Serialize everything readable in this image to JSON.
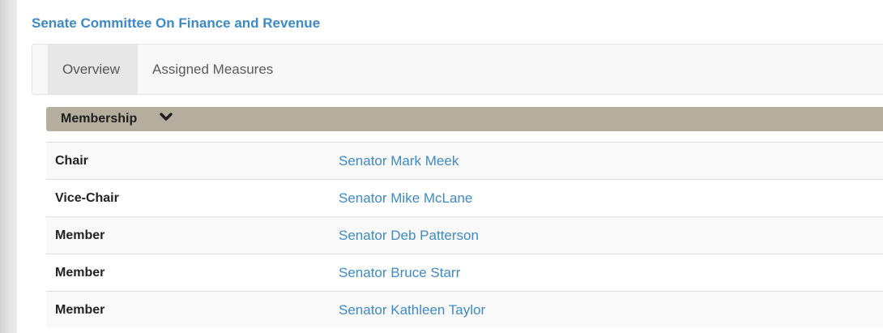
{
  "committee": {
    "title": "Senate Committee On Finance and Revenue"
  },
  "tabs": [
    {
      "label": "Overview",
      "active": true
    },
    {
      "label": "Assigned Measures",
      "active": false
    }
  ],
  "membership": {
    "header_label": "Membership",
    "toggle_icon": "chevron-down-icon",
    "members": [
      {
        "role": "Chair",
        "name": "Senator Mark Meek"
      },
      {
        "role": "Vice-Chair",
        "name": "Senator Mike McLane"
      },
      {
        "role": "Member",
        "name": "Senator Deb Patterson"
      },
      {
        "role": "Member",
        "name": "Senator Bruce Starr"
      },
      {
        "role": "Member",
        "name": "Senator Kathleen Taylor"
      }
    ]
  },
  "colors": {
    "link": "#3d8ac4",
    "header_bar": "#b5ad9e",
    "tab_active_bg": "#e7e7e7"
  }
}
